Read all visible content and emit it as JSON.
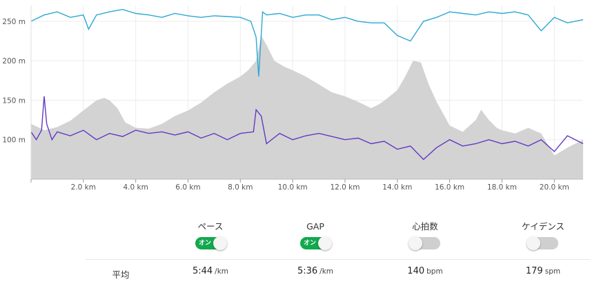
{
  "chart_data": {
    "type": "line",
    "x_label_unit": "km",
    "x_ticks": [
      "2.0 km",
      "4.0 km",
      "6.0 km",
      "8.0 km",
      "10.0 km",
      "12.0 km",
      "14.0 km",
      "16.0 km",
      "18.0 km",
      "20.0 km"
    ],
    "x_tick_values": [
      2,
      4,
      6,
      8,
      10,
      12,
      14,
      16,
      18,
      20
    ],
    "y_ticks": [
      "250 m",
      "200 m",
      "150 m",
      "100 m"
    ],
    "y_tick_values": [
      250,
      200,
      150,
      100
    ],
    "xlim": [
      0,
      21.1
    ],
    "ylim": [
      50,
      270
    ],
    "grid": true,
    "series": [
      {
        "type": "area",
        "color": "#d3d3d3",
        "x": [
          0,
          0.2,
          0.5,
          1.0,
          1.5,
          2.0,
          2.5,
          2.8,
          3.0,
          3.3,
          3.6,
          4.0,
          4.5,
          5.0,
          5.5,
          6.0,
          6.5,
          7.0,
          7.5,
          8.0,
          8.3,
          8.6,
          8.8,
          9.0,
          9.3,
          9.7,
          10.0,
          10.5,
          11.0,
          11.5,
          12.0,
          12.5,
          13.0,
          13.3,
          13.6,
          14.0,
          14.3,
          14.6,
          14.9,
          15.2,
          15.5,
          15.8,
          16.0,
          16.5,
          17.0,
          17.2,
          17.5,
          17.8,
          18.0,
          18.5,
          19.0,
          19.5,
          20.0,
          20.5,
          21.1
        ],
        "y": [
          120,
          117,
          112,
          116,
          124,
          137,
          150,
          153,
          150,
          140,
          122,
          115,
          114,
          120,
          130,
          137,
          147,
          160,
          171,
          180,
          188,
          200,
          232,
          220,
          200,
          192,
          188,
          180,
          170,
          160,
          155,
          148,
          140,
          145,
          152,
          163,
          180,
          200,
          198,
          170,
          148,
          130,
          118,
          110,
          125,
          138,
          125,
          115,
          112,
          108,
          115,
          108,
          80,
          90,
          100
        ]
      },
      {
        "type": "line",
        "color": "#2aa8d4",
        "x": [
          0,
          0.5,
          1.0,
          1.5,
          2.0,
          2.2,
          2.5,
          3.0,
          3.5,
          4.0,
          4.5,
          5.0,
          5.5,
          6.0,
          6.5,
          7.0,
          7.5,
          8.0,
          8.4,
          8.6,
          8.7,
          8.85,
          9.0,
          9.5,
          10.0,
          10.5,
          11.0,
          11.5,
          12.0,
          12.5,
          13.0,
          13.5,
          14.0,
          14.5,
          15.0,
          15.5,
          16.0,
          16.5,
          17.0,
          17.5,
          18.0,
          18.5,
          19.0,
          19.5,
          20.0,
          20.5,
          21.1
        ],
        "y": [
          250,
          258,
          262,
          255,
          258,
          240,
          258,
          262,
          265,
          260,
          258,
          255,
          260,
          257,
          255,
          257,
          256,
          255,
          250,
          230,
          180,
          262,
          258,
          260,
          255,
          258,
          258,
          252,
          255,
          250,
          248,
          248,
          232,
          225,
          250,
          255,
          262,
          260,
          258,
          262,
          260,
          262,
          258,
          238,
          255,
          248,
          252
        ]
      },
      {
        "type": "line",
        "color": "#6238c4",
        "x": [
          0,
          0.2,
          0.4,
          0.5,
          0.6,
          0.8,
          1.0,
          1.5,
          2.0,
          2.5,
          3.0,
          3.5,
          4.0,
          4.5,
          5.0,
          5.5,
          6.0,
          6.5,
          7.0,
          7.5,
          8.0,
          8.5,
          8.6,
          8.8,
          9.0,
          9.5,
          10.0,
          10.5,
          11.0,
          11.5,
          12.0,
          12.5,
          13.0,
          13.5,
          14.0,
          14.5,
          15.0,
          15.5,
          16.0,
          16.5,
          17.0,
          17.5,
          18.0,
          18.5,
          19.0,
          19.5,
          20.0,
          20.5,
          21.1
        ],
        "y": [
          110,
          100,
          112,
          155,
          120,
          100,
          110,
          105,
          112,
          100,
          108,
          104,
          112,
          108,
          110,
          106,
          110,
          102,
          108,
          100,
          108,
          110,
          138,
          130,
          95,
          108,
          100,
          105,
          108,
          104,
          100,
          102,
          95,
          98,
          88,
          92,
          75,
          90,
          100,
          92,
          95,
          100,
          95,
          98,
          92,
          100,
          85,
          105,
          95
        ]
      }
    ]
  },
  "controls": {
    "columns": [
      {
        "label": "ペース",
        "toggle_on": true,
        "toggle_text": "オン",
        "value": "5:44",
        "unit": "/km"
      },
      {
        "label": "GAP",
        "toggle_on": true,
        "toggle_text": "オン",
        "value": "5:36",
        "unit": "/km"
      },
      {
        "label": "心拍数",
        "toggle_on": false,
        "toggle_text": "",
        "value": "140",
        "unit": "bpm"
      },
      {
        "label": "ケイデンス",
        "toggle_on": false,
        "toggle_text": "",
        "value": "179",
        "unit": "spm"
      }
    ],
    "row_label": "平均"
  }
}
